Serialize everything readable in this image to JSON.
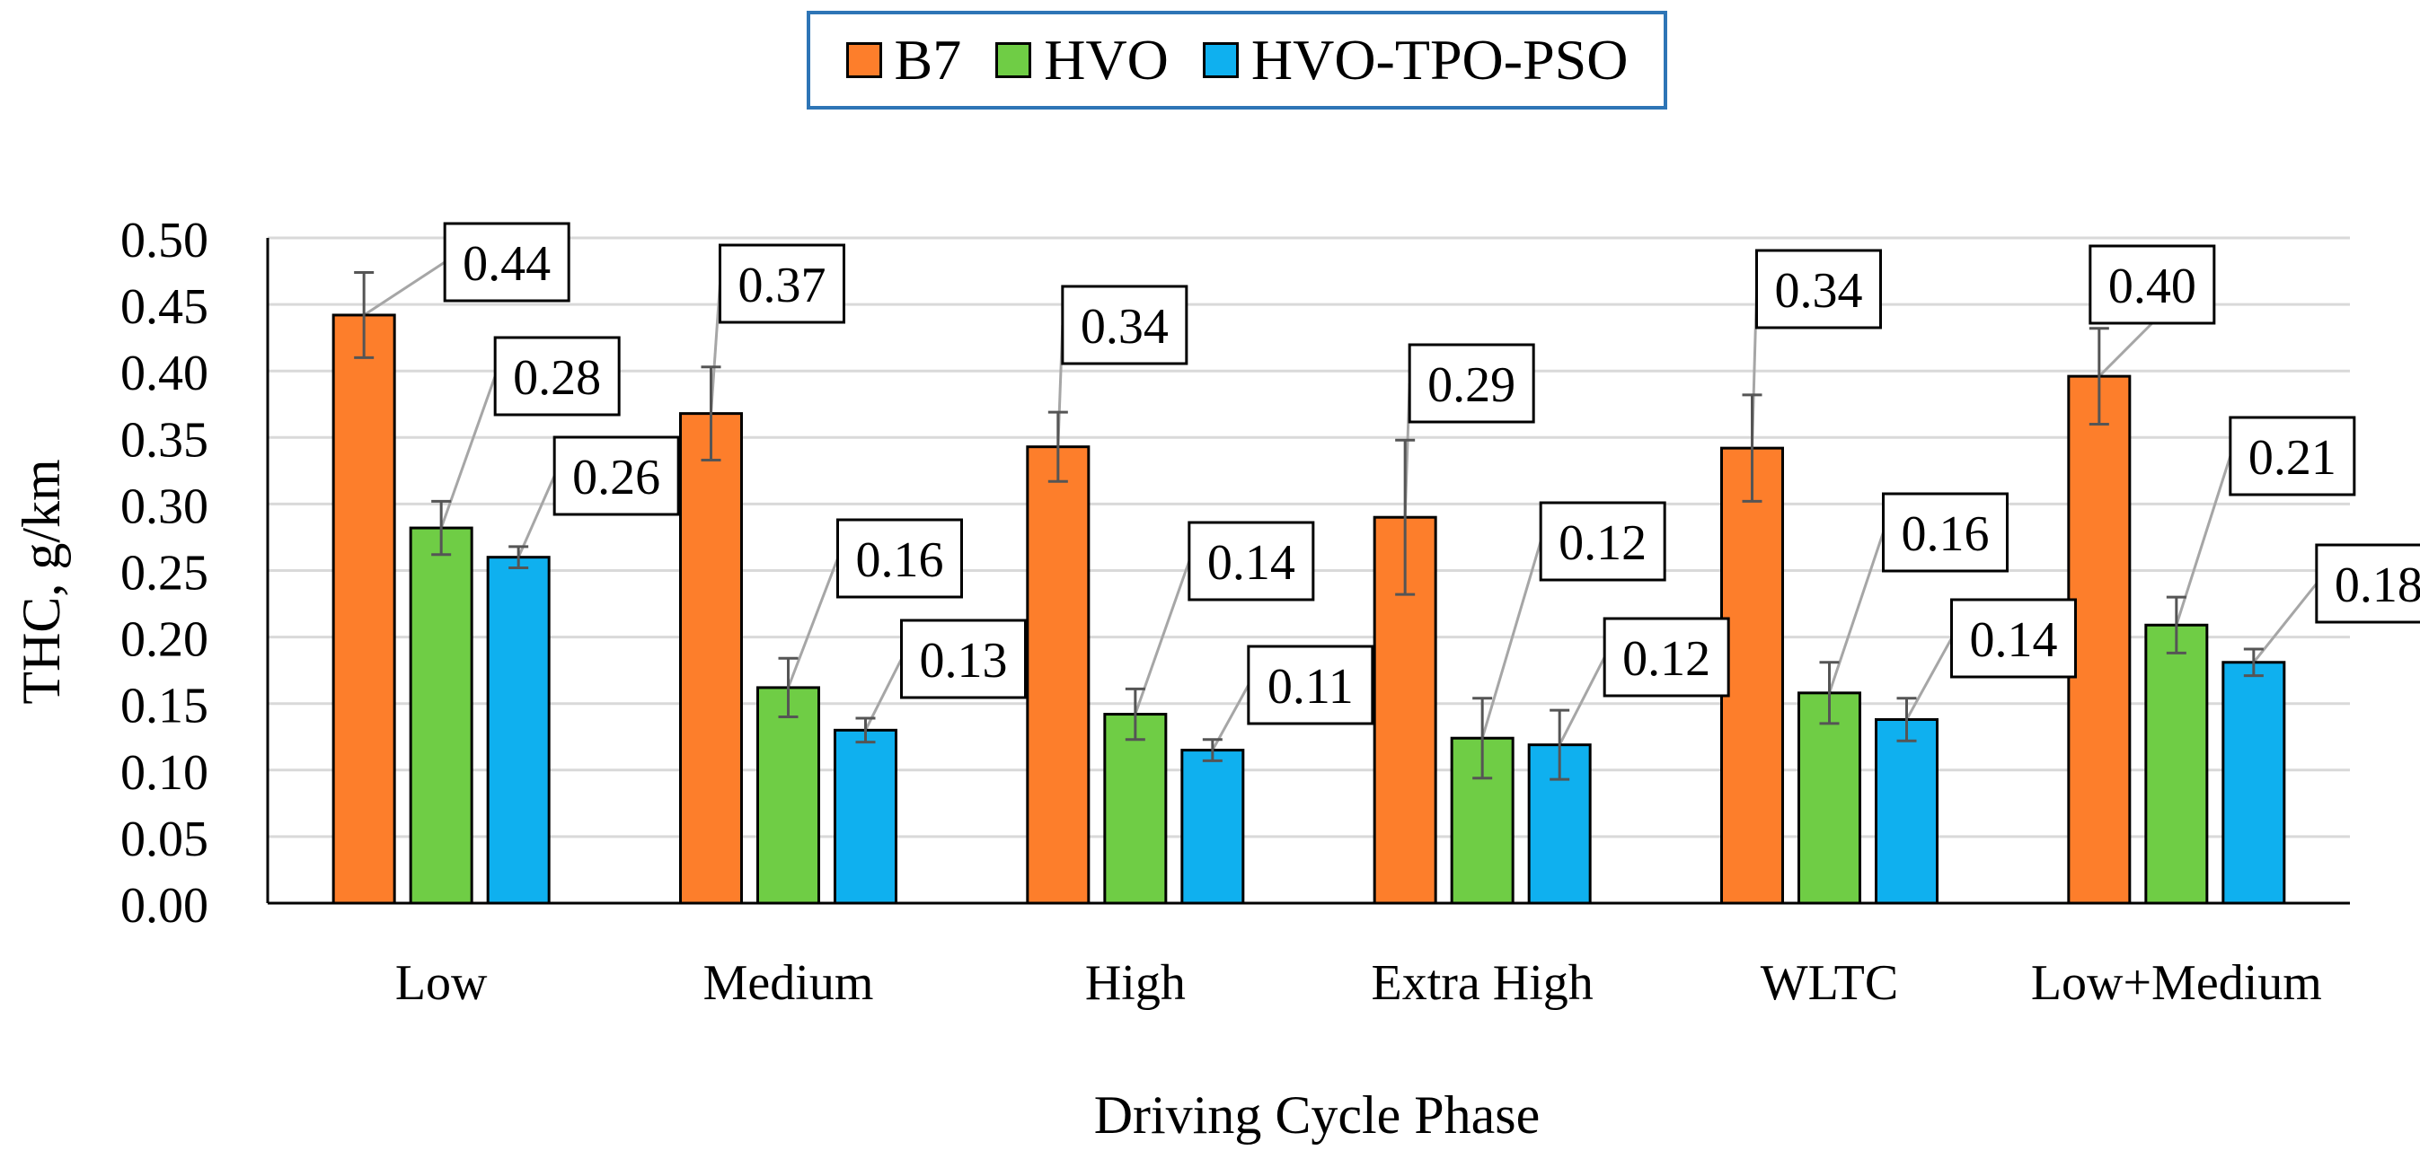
{
  "chart_data": {
    "type": "bar",
    "title": "",
    "xlabel": "Driving Cycle Phase",
    "ylabel": "THC, g/km",
    "ylim": [
      0,
      0.5
    ],
    "yticks": [
      "0.00",
      "0.05",
      "0.10",
      "0.15",
      "0.20",
      "0.25",
      "0.30",
      "0.35",
      "0.40",
      "0.45",
      "0.50"
    ],
    "grid": true,
    "legend_position": "top-center",
    "categories": [
      "Low",
      "Medium",
      "High",
      "Extra High",
      "WLTC",
      "Low+Medium"
    ],
    "series": [
      {
        "name": "B7",
        "color": "#fd7e2b",
        "values": [
          0.442,
          0.368,
          0.343,
          0.29,
          0.342,
          0.396
        ],
        "errors": [
          0.032,
          0.035,
          0.026,
          0.058,
          0.04,
          0.036
        ],
        "labels": [
          "0.44",
          "0.37",
          "0.34",
          "0.29",
          "0.34",
          "0.40"
        ]
      },
      {
        "name": "HVO",
        "color": "#6fcd45",
        "values": [
          0.282,
          0.162,
          0.142,
          0.124,
          0.158,
          0.209
        ],
        "errors": [
          0.02,
          0.022,
          0.019,
          0.03,
          0.023,
          0.021
        ],
        "labels": [
          "0.28",
          "0.16",
          "0.14",
          "0.12",
          "0.16",
          "0.21"
        ]
      },
      {
        "name": "HVO-TPO-PSO",
        "color": "#0fb0ef",
        "values": [
          0.26,
          0.13,
          0.115,
          0.119,
          0.138,
          0.181
        ],
        "errors": [
          0.008,
          0.009,
          0.008,
          0.026,
          0.016,
          0.01
        ],
        "labels": [
          "0.26",
          "0.13",
          "0.11",
          "0.12",
          "0.14",
          "0.18"
        ]
      }
    ]
  }
}
